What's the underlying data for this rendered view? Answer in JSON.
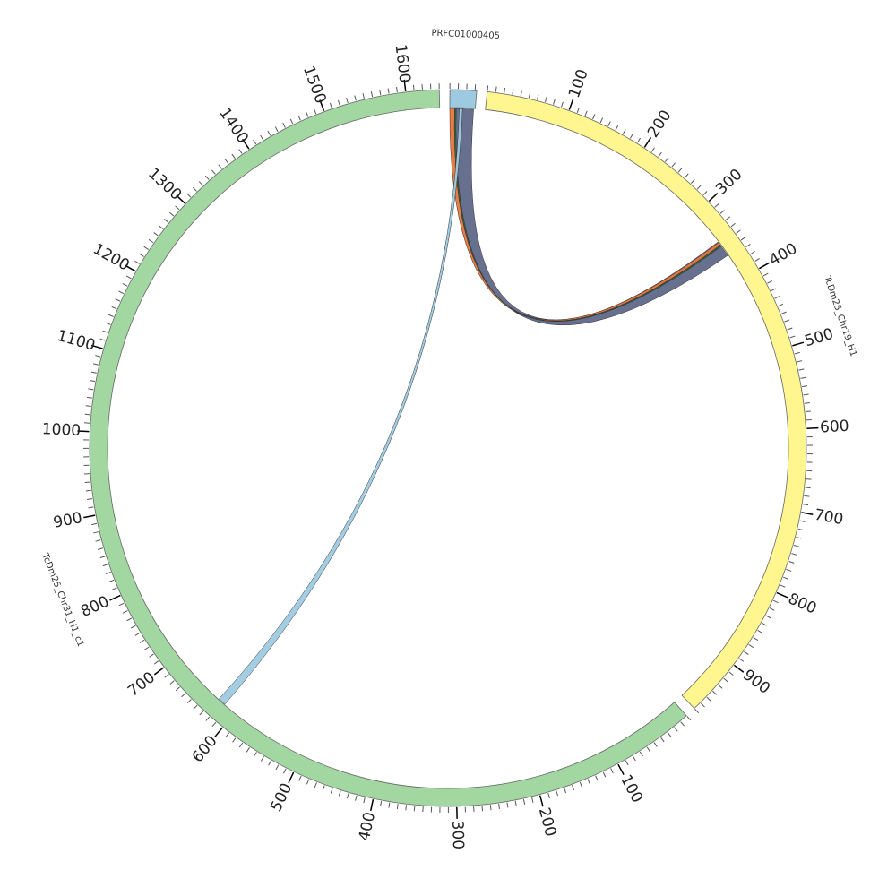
{
  "chart_data": {
    "type": "chord",
    "chromosomes": [
      {
        "name": "PRFC01000405",
        "length": 32,
        "color": "#9ecae1",
        "ticks": [],
        "minor_tick_step": 10
      },
      {
        "name": "TcDm25_Chr19_H1",
        "length": 970,
        "color": "#fff68f",
        "ticks": [
          100,
          200,
          300,
          400,
          500,
          600,
          700,
          800,
          900
        ],
        "minor_tick_step": 10
      },
      {
        "name": "TcDm25_Chr31_H1_c1",
        "length": 1640,
        "color": "#a3d7a2",
        "ticks": [
          100,
          200,
          300,
          400,
          500,
          600,
          700,
          800,
          900,
          1000,
          1100,
          1200,
          1300,
          1400,
          1500,
          1600
        ],
        "minor_tick_step": 10
      }
    ],
    "links": [
      {
        "source": 0,
        "source_start": 8,
        "source_end": 30,
        "target": 1,
        "target_start": 345,
        "target_end": 366,
        "color": "#5f6889"
      },
      {
        "source": 0,
        "source_start": 0,
        "source_end": 6,
        "target": 1,
        "target_start": 346,
        "target_end": 350,
        "color": "#e8743b"
      },
      {
        "source": 0,
        "source_start": 6,
        "source_end": 8,
        "target": 1,
        "target_start": 350,
        "target_end": 352,
        "color": "#2f5f34"
      },
      {
        "source": 0,
        "source_start": 12,
        "source_end": 16,
        "target": 2,
        "target_start": 616,
        "target_end": 626,
        "color": "#9ecae1"
      }
    ]
  }
}
